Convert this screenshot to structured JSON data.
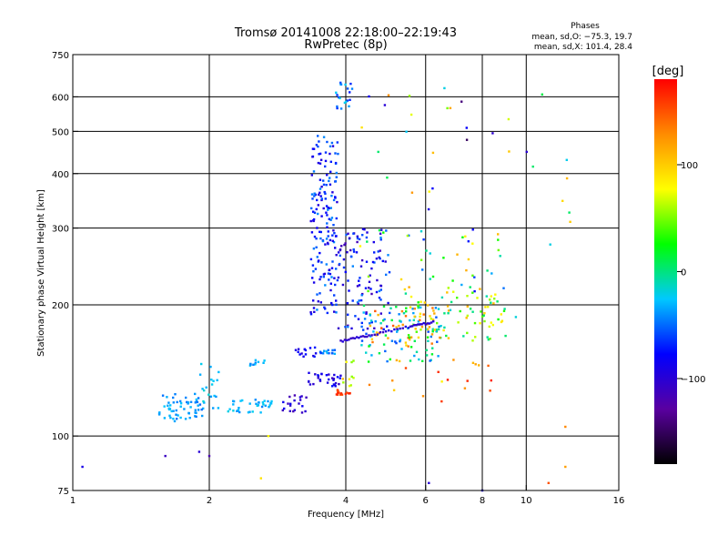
{
  "chart_data": {
    "type": "scatter",
    "title": "Tromsø 20141008 22:18:00–22:19:43",
    "subtitle": "RwPretec (8p)",
    "phases_label": "Phases",
    "phase_stats": [
      "mean, sd,O: −75.3, 19.7",
      "mean, sd,X: 101.4, 28.4"
    ],
    "xlabel": "Frequency [MHz]",
    "ylabel": "Stationary phase Virtual Height [km]",
    "x_scale": "log",
    "y_scale": "log",
    "xlim": [
      1,
      16
    ],
    "ylim": [
      75,
      750
    ],
    "x_ticks": [
      1,
      2,
      4,
      6,
      8,
      10,
      16
    ],
    "y_ticks": [
      75,
      100,
      200,
      300,
      400,
      500,
      600,
      750
    ],
    "x_grid": [
      2,
      4,
      6,
      8,
      10
    ],
    "y_grid": [
      100,
      200,
      300,
      400,
      500,
      600
    ],
    "grid": true,
    "colorbar": {
      "label": "[deg]",
      "range": [
        -180,
        180
      ],
      "ticks": [
        100,
        0,
        -100
      ],
      "tick_labels": [
        "100",
        "0",
        "−100"
      ],
      "colors": [
        "#000000",
        "#5a00a0",
        "#0000ff",
        "#00c8ff",
        "#00ff00",
        "#ffff00",
        "#ff8c00",
        "#ff0000"
      ]
    },
    "clusters": [
      {
        "x": [
          1.55,
          1.95
        ],
        "y": [
          108,
          125
        ],
        "phase": [
          -50,
          -25
        ],
        "n": 60
      },
      {
        "x": [
          1.85,
          2.1
        ],
        "y": [
          115,
          148
        ],
        "phase": [
          -40,
          -15
        ],
        "n": 18
      },
      {
        "x": [
          2.2,
          2.75
        ],
        "y": [
          113,
          122
        ],
        "phase": [
          -45,
          -20
        ],
        "n": 35
      },
      {
        "x": [
          2.45,
          2.65
        ],
        "y": [
          145,
          150
        ],
        "phase": [
          -45,
          -20
        ],
        "n": 10
      },
      {
        "x": [
          2.9,
          3.3
        ],
        "y": [
          113,
          125
        ],
        "phase": [
          -120,
          -80
        ],
        "n": 20
      },
      {
        "x": [
          3.1,
          3.45
        ],
        "y": [
          150,
          160
        ],
        "phase": [
          -100,
          -70
        ],
        "n": 14
      },
      {
        "x": [
          3.3,
          3.9
        ],
        "y": [
          130,
          140
        ],
        "phase": [
          -110,
          -70
        ],
        "n": 30
      },
      {
        "x": [
          3.35,
          3.85
        ],
        "y": [
          190,
          490
        ],
        "phase": [
          -100,
          -40
        ],
        "n": 170
      },
      {
        "x": [
          3.5,
          3.8
        ],
        "y": [
          153,
          158
        ],
        "phase": [
          -70,
          -30
        ],
        "n": 15
      },
      {
        "x": [
          3.8,
          4.15
        ],
        "y": [
          560,
          650
        ],
        "phase": [
          -70,
          -20
        ],
        "n": 20
      },
      {
        "x": [
          3.85,
          5.0
        ],
        "y": [
          175,
          300
        ],
        "phase": [
          -120,
          -40
        ],
        "n": 110
      },
      {
        "x": [
          3.8,
          4.1
        ],
        "y": [
          124,
          128
        ],
        "phase": [
          150,
          170
        ],
        "n": 15
      },
      {
        "x": [
          3.9,
          4.2
        ],
        "y": [
          130,
          150
        ],
        "phase": [
          50,
          110
        ],
        "n": 10
      },
      {
        "x": [
          4.3,
          6.5
        ],
        "y": [
          148,
          200
        ],
        "phase": [
          -60,
          30
        ],
        "n": 80
      },
      {
        "x": [
          4.5,
          6.5
        ],
        "y": [
          160,
          200
        ],
        "phase": [
          90,
          150
        ],
        "n": 40
      },
      {
        "x": [
          5.5,
          9.5
        ],
        "y": [
          165,
          210
        ],
        "phase": [
          -20,
          110
        ],
        "n": 80
      },
      {
        "x": [
          4.2,
          9.0
        ],
        "y": [
          210,
          300
        ],
        "phase": [
          -80,
          120
        ],
        "n": 50
      },
      {
        "x": [
          4.3,
          12.5
        ],
        "y": [
          300,
          620
        ],
        "phase": [
          -120,
          130
        ],
        "n": 25
      },
      {
        "x": [
          4.3,
          8.5
        ],
        "y": [
          120,
          150
        ],
        "phase": [
          80,
          170
        ],
        "n": 20
      }
    ],
    "trace": {
      "x": [
        3.9,
        4.5,
        5.5,
        6.3
      ],
      "y": [
        165,
        170,
        178,
        183
      ],
      "phase": -100
    },
    "scatter_points": [
      {
        "x": 1.05,
        "y": 85,
        "phase": -90
      },
      {
        "x": 1.6,
        "y": 90,
        "phase": -110
      },
      {
        "x": 1.9,
        "y": 92,
        "phase": -100
      },
      {
        "x": 2.0,
        "y": 90,
        "phase": -120
      },
      {
        "x": 2.6,
        "y": 80,
        "phase": 90
      },
      {
        "x": 2.7,
        "y": 100,
        "phase": 80
      },
      {
        "x": 6.1,
        "y": 78,
        "phase": -100
      },
      {
        "x": 8.0,
        "y": 75,
        "phase": -90
      },
      {
        "x": 11.2,
        "y": 78,
        "phase": 150
      },
      {
        "x": 12.2,
        "y": 85,
        "phase": 120
      },
      {
        "x": 12.2,
        "y": 105,
        "phase": 130
      },
      {
        "x": 12.3,
        "y": 390,
        "phase": 110
      },
      {
        "x": 12.5,
        "y": 310,
        "phase": 100
      },
      {
        "x": 11.3,
        "y": 275,
        "phase": -20
      },
      {
        "x": 6.6,
        "y": 628,
        "phase": -20
      },
      {
        "x": 7.2,
        "y": 585,
        "phase": -140
      },
      {
        "x": 7.4,
        "y": 478,
        "phase": -150
      },
      {
        "x": 6.7,
        "y": 565,
        "phase": 50
      }
    ]
  }
}
